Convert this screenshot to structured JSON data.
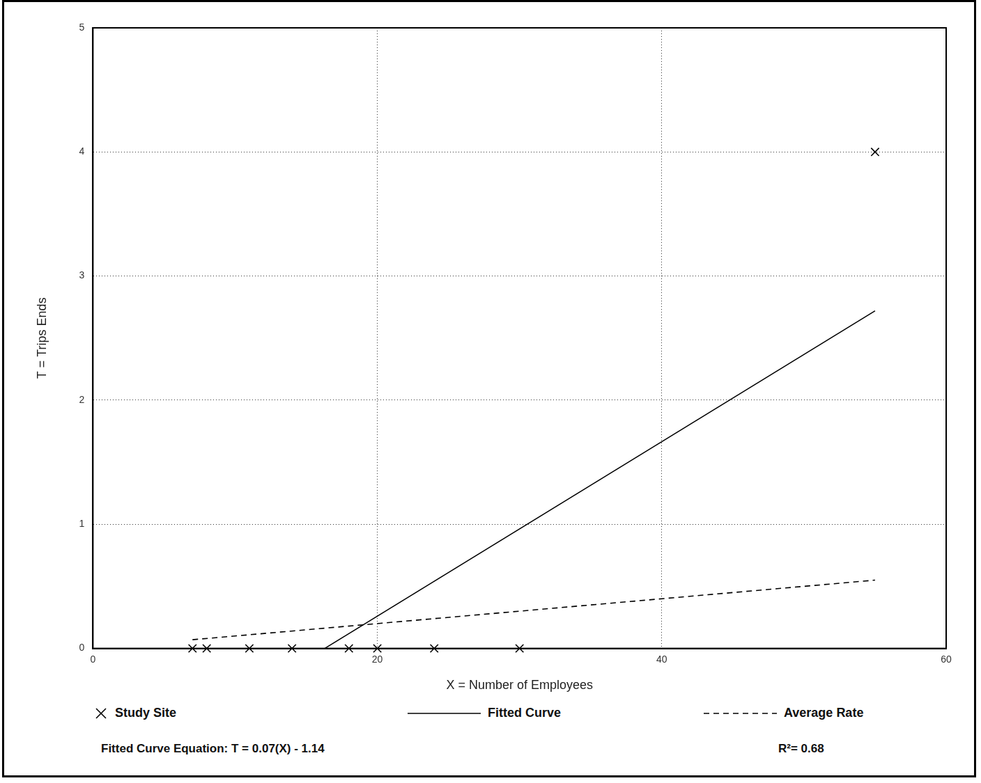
{
  "chart_data": {
    "type": "scatter",
    "x_label": "X = Number of Employees",
    "y_label": "T = Trips Ends",
    "series": [
      {
        "name": "Study Site",
        "type": "scatter",
        "marker": "x",
        "color": "#000000",
        "x": [
          7,
          8,
          11,
          14,
          18,
          20,
          24,
          30,
          55
        ],
        "values": [
          0,
          0,
          0,
          0,
          0,
          0,
          0,
          0,
          4
        ]
      },
      {
        "name": "Fitted Curve",
        "type": "line",
        "line_style": "solid",
        "color": "#000000",
        "x": [
          16.3,
          55
        ],
        "values": [
          0,
          2.72
        ]
      },
      {
        "name": "Average Rate",
        "type": "line",
        "line_style": "dashed",
        "color": "#000000",
        "x": [
          7,
          55
        ],
        "values": [
          0.07,
          0.55
        ]
      }
    ],
    "xlim": [
      0,
      60
    ],
    "xticks": [
      0,
      20,
      40,
      60
    ],
    "ylim": [
      0,
      5
    ],
    "yticks": [
      0,
      1,
      2,
      3,
      4,
      5
    ],
    "grid": true,
    "legend": "bottom",
    "annotations": [
      "Fitted Curve Equation: T = 0.07(X) - 1.14",
      "R²= 0.68"
    ]
  }
}
